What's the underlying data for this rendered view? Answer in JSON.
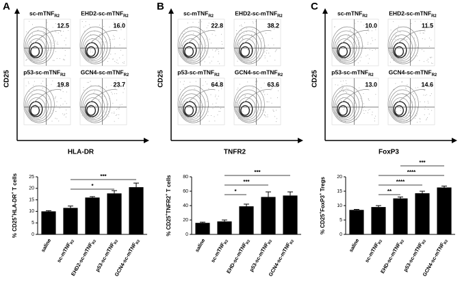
{
  "panels": [
    {
      "label": "A",
      "flow": {
        "y_label": "CD25",
        "x_label": "HLA-DR",
        "plots": [
          {
            "name": "sc-mTNFR2",
            "value": "12.5"
          },
          {
            "name": "EHD2-sc-mTNFR2",
            "value": "16.0"
          },
          {
            "name": "p53-sc-mTNFR2",
            "value": "19.8"
          },
          {
            "name": "GCN4-sc-mTNFR2",
            "value": "23.7"
          }
        ]
      }
    },
    {
      "label": "B",
      "flow": {
        "y_label": "CD25",
        "x_label": "TNFR2",
        "plots": [
          {
            "name": "sc-mTNFR2",
            "value": "22.8"
          },
          {
            "name": "EHD2-sc-mTNFR2",
            "value": "38.2"
          },
          {
            "name": "p53-sc-mTNFR2",
            "value": "64.8"
          },
          {
            "name": "GCN4-sc-mTNFR2",
            "value": "63.6"
          }
        ]
      }
    },
    {
      "label": "C",
      "flow": {
        "y_label": "CD25",
        "x_label": "FoxP3",
        "plots": [
          {
            "name": "sc-mTNFR2",
            "value": "10.0"
          },
          {
            "name": "EHD2-sc-mTNFR2",
            "value": "11.5"
          },
          {
            "name": "p53-sc-mTNFR2",
            "value": "13.0"
          },
          {
            "name": "GCN4-sc-mTNFR2",
            "value": "14.6"
          }
        ]
      }
    }
  ],
  "chart_data": [
    {
      "type": "bar",
      "y_label": "% CD25+HLA-DR+ T cells",
      "color": "#000000",
      "categories": [
        "saline",
        "sc-mTNFR2",
        "EHD2-sc-mTNFR2",
        "p53-sc-mTNFR2",
        "GCN4-sc-mTNFR2"
      ],
      "values": [
        10,
        11.5,
        16,
        17.8,
        20.5
      ],
      "errors": [
        0.3,
        0.8,
        0.4,
        1.2,
        1.8
      ],
      "ylim": [
        0,
        25
      ],
      "yticks": [
        0,
        5,
        10,
        15,
        20,
        25
      ],
      "annotations": [
        {
          "label": "*",
          "from": "sc-mTNFR2",
          "to": "p53-sc-mTNFR2"
        },
        {
          "label": "***",
          "from": "sc-mTNFR2",
          "to": "GCN4-sc-mTNFR2"
        }
      ]
    },
    {
      "type": "bar",
      "y_label": "% CD25+TNFR2+ T cells",
      "color": "#000000",
      "categories": [
        "saline",
        "sc-mTNFR2",
        "EHD-sc-mTNFR2",
        "p53-sc-mTNFR2",
        "GCN4-sc-mTNFR2"
      ],
      "values": [
        16,
        18,
        39,
        52,
        54
      ],
      "errors": [
        1,
        2,
        3,
        7,
        5
      ],
      "ylim": [
        0,
        80
      ],
      "yticks": [
        0,
        20,
        40,
        60,
        80
      ],
      "annotations": [
        {
          "label": "*",
          "from": "sc-mTNFR2",
          "to": "EHD-sc-mTNFR2"
        },
        {
          "label": "***",
          "from": "sc-mTNFR2",
          "to": "p53-sc-mTNFR2"
        },
        {
          "label": "***",
          "from": "sc-mTNFR2",
          "to": "GCN4-sc-mTNFR2"
        }
      ]
    },
    {
      "type": "bar",
      "y_label": "% CD25+FoxP3+ Tregs",
      "color": "#000000",
      "categories": [
        "saline",
        "sc-mTNFR2",
        "EHD-sc-mTNFR2",
        "p53-sc-mTNFR2",
        "GCN4-sc-mTNFR2"
      ],
      "values": [
        8.5,
        9.5,
        12.5,
        14.3,
        16.3
      ],
      "errors": [
        0.2,
        0.5,
        0.5,
        0.7,
        0.5
      ],
      "ylim": [
        0,
        20
      ],
      "yticks": [
        0,
        5,
        10,
        15,
        20
      ],
      "annotations": [
        {
          "label": "**",
          "from": "sc-mTNFR2",
          "to": "EHD-sc-mTNFR2"
        },
        {
          "label": "****",
          "from": "sc-mTNFR2",
          "to": "p53-sc-mTNFR2"
        },
        {
          "label": "****",
          "from": "sc-mTNFR2",
          "to": "GCN4-sc-mTNFR2"
        },
        {
          "label": "***",
          "from": "EHD-sc-mTNFR2",
          "to": "GCN4-sc-mTNFR2"
        }
      ]
    }
  ]
}
